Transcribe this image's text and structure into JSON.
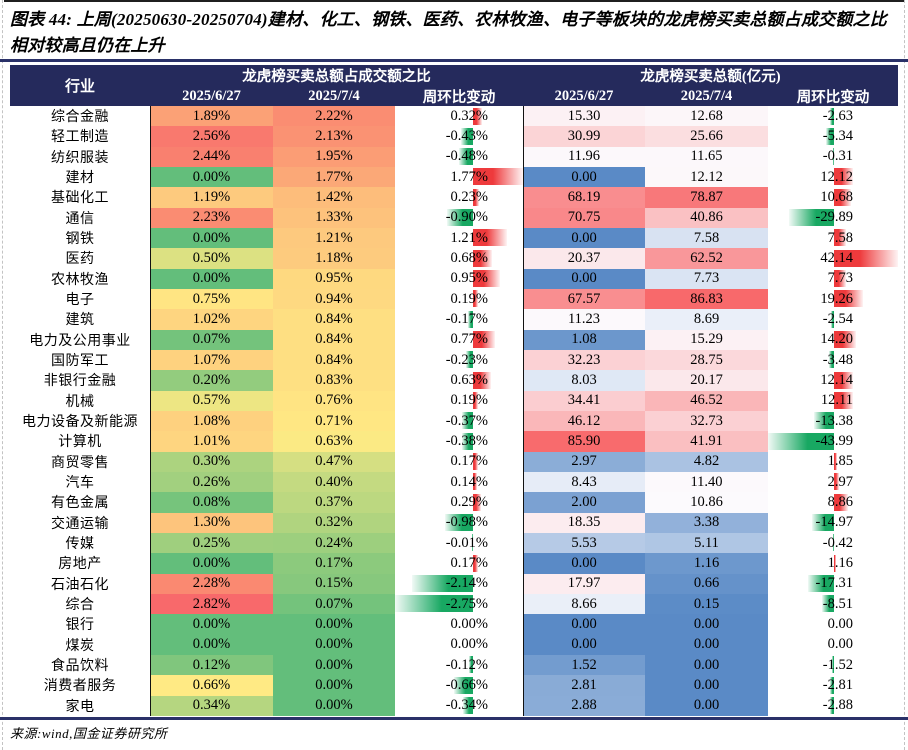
{
  "title": {
    "label": "图表 44:",
    "text": "上周(20250630-20250704)建材、化工、钢铁、医药、农林牧渔、电子等板块的龙虎榜买卖总额占成交额之比相对较高且仍在上升"
  },
  "source": "来源:wind,国金证券研究所",
  "table": {
    "industry_header": "行业",
    "groups": [
      {
        "label": "龙虎榜买卖总额占成交额之比",
        "cols": [
          "2025/6/27",
          "2025/7/4",
          "周环比变动"
        ]
      },
      {
        "label": "龙虎榜买卖总额(亿元)",
        "cols": [
          "2025/6/27",
          "2025/7/4",
          "周环比变动"
        ]
      }
    ]
  },
  "colors": {
    "header_bg": "#252a5c",
    "rule_navy": "#2a3168",
    "top_border": "#1f1f1f",
    "divider": "#121212",
    "page_border_dash": "#c3c3c3",
    "heatmap_pct": {
      "min": "#63be7b",
      "mid": "#ffeb84",
      "max": "#f8696b"
    },
    "heatmap_amt": {
      "min": "#5a8ac6",
      "mid": "#fcfcff",
      "max": "#f8696b"
    },
    "bar_positive": "#ee3a3c",
    "bar_negative": "#18a862"
  },
  "chart_data": {
    "type": "table",
    "title": "图表 44: 上周(20250630-20250704)建材、化工、钢铁、医药、农林牧渔、电子等板块的龙虎榜买卖总额占成交额之比相对较高且仍在上升",
    "layout_hints": {
      "heatmap_pct_scale": "green-yellow-red, min/median/max of both percent columns",
      "heatmap_amt_scale": "blue-white-red, min/median/max of both amount columns",
      "change_columns": "gradient databars, red=positive (right of axis), green=negative (left of axis)"
    },
    "categories": [
      "综合金融",
      "轻工制造",
      "纺织服装",
      "建材",
      "基础化工",
      "通信",
      "钢铁",
      "医药",
      "农林牧渔",
      "电子",
      "建筑",
      "电力及公用事业",
      "国防军工",
      "非银行金融",
      "机械",
      "电力设备及新能源",
      "计算机",
      "商贸零售",
      "汽车",
      "有色金属",
      "交通运输",
      "传媒",
      "房地产",
      "石油石化",
      "综合",
      "银行",
      "煤炭",
      "食品饮料",
      "消费者服务",
      "家电"
    ],
    "series": [
      {
        "group": "龙虎榜买卖总额占成交额之比",
        "name": "2025/6/27",
        "format": "percent",
        "values": [
          1.89,
          2.56,
          2.44,
          0.0,
          1.19,
          2.23,
          0.0,
          0.5,
          0.0,
          0.75,
          1.02,
          0.07,
          1.07,
          0.2,
          0.57,
          1.08,
          1.01,
          0.3,
          0.26,
          0.08,
          1.3,
          0.25,
          0.0,
          2.28,
          2.82,
          0.0,
          0.0,
          0.12,
          0.66,
          0.34
        ]
      },
      {
        "group": "龙虎榜买卖总额占成交额之比",
        "name": "2025/7/4",
        "format": "percent",
        "values": [
          2.22,
          2.13,
          1.95,
          1.77,
          1.42,
          1.33,
          1.21,
          1.18,
          0.95,
          0.94,
          0.84,
          0.84,
          0.84,
          0.83,
          0.76,
          0.71,
          0.63,
          0.47,
          0.4,
          0.37,
          0.32,
          0.24,
          0.17,
          0.15,
          0.07,
          0.0,
          0.0,
          0.0,
          0.0,
          0.0
        ]
      },
      {
        "group": "龙虎榜买卖总额占成交额之比",
        "name": "周环比变动",
        "format": "percent",
        "values": [
          0.32,
          -0.43,
          -0.48,
          1.77,
          0.23,
          -0.9,
          1.21,
          0.68,
          0.95,
          0.19,
          -0.17,
          0.77,
          -0.23,
          0.63,
          0.19,
          -0.37,
          -0.38,
          0.17,
          0.14,
          0.29,
          -0.98,
          -0.01,
          0.17,
          -2.14,
          -2.75,
          0.0,
          0.0,
          -0.12,
          -0.66,
          -0.34
        ]
      },
      {
        "group": "龙虎榜买卖总额(亿元)",
        "name": "2025/6/27",
        "format": "number",
        "values": [
          15.3,
          30.99,
          11.96,
          0.0,
          68.19,
          70.75,
          0.0,
          20.37,
          0.0,
          67.57,
          11.23,
          1.08,
          32.23,
          8.03,
          34.41,
          46.12,
          85.9,
          2.97,
          8.43,
          2.0,
          18.35,
          5.53,
          0.0,
          17.97,
          8.66,
          0.0,
          0.0,
          1.52,
          2.81,
          2.88
        ]
      },
      {
        "group": "龙虎榜买卖总额(亿元)",
        "name": "2025/7/4",
        "format": "number",
        "values": [
          12.68,
          25.66,
          11.65,
          12.12,
          78.87,
          40.86,
          7.58,
          62.52,
          7.73,
          86.83,
          8.69,
          15.29,
          28.75,
          20.17,
          46.52,
          32.73,
          41.91,
          4.82,
          11.4,
          10.86,
          3.38,
          5.11,
          1.16,
          0.66,
          0.15,
          0.0,
          0.0,
          0.0,
          0.0,
          0.0
        ]
      },
      {
        "group": "龙虎榜买卖总额(亿元)",
        "name": "周环比变动",
        "format": "number",
        "values": [
          -2.63,
          -5.34,
          -0.31,
          12.12,
          10.68,
          -29.89,
          7.58,
          42.14,
          7.73,
          19.26,
          -2.54,
          14.2,
          -3.48,
          12.14,
          12.11,
          -13.38,
          -43.99,
          1.85,
          2.97,
          8.86,
          -14.97,
          -0.42,
          1.16,
          -17.31,
          -8.51,
          0.0,
          0.0,
          -1.52,
          -2.81,
          -2.88
        ]
      }
    ]
  }
}
